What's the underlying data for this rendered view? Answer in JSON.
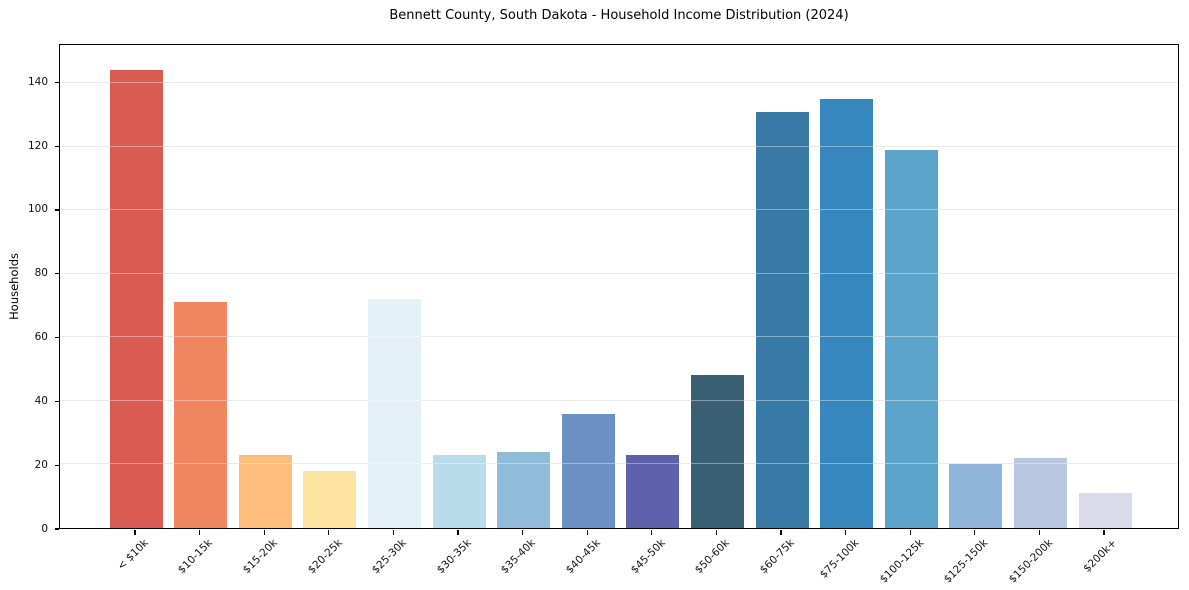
{
  "chart_data": {
    "type": "bar",
    "title": "Bennett County, South Dakota - Household Income Distribution (2024)",
    "xlabel": "",
    "ylabel": "Households",
    "categories": [
      "< $10k",
      "$10-15k",
      "$15-20k",
      "$20-25k",
      "$25-30k",
      "$30-35k",
      "$35-40k",
      "$40-45k",
      "$45-50k",
      "$50-60k",
      "$60-75k",
      "$75-100k",
      "$100-125k",
      "$125-150k",
      "$150-200k",
      "$200k+"
    ],
    "values": [
      144,
      71,
      23,
      18,
      72,
      23,
      24,
      36,
      23,
      48,
      131,
      135,
      119,
      20,
      22,
      11
    ],
    "bar_colors": [
      "#d95b52",
      "#f0855f",
      "#fcbe7a",
      "#fde3a0",
      "#e4f1f6",
      "#b8dcec",
      "#90bcd9",
      "#6a90c4",
      "#5c61a9",
      "#3a5e74",
      "#3879a6",
      "#3587bd",
      "#5ca4ca",
      "#8fb6da",
      "#b9c7e0",
      "#dadbe8"
    ],
    "yticks": [
      0,
      20,
      40,
      60,
      80,
      100,
      120,
      140
    ],
    "ylim": [
      0,
      152
    ],
    "grid": "horizontal",
    "legend": "none"
  },
  "colors": {
    "background": "#ffffff",
    "axis": "#000000",
    "gridline": "#e7e7e7",
    "tick_text": "#111111"
  }
}
